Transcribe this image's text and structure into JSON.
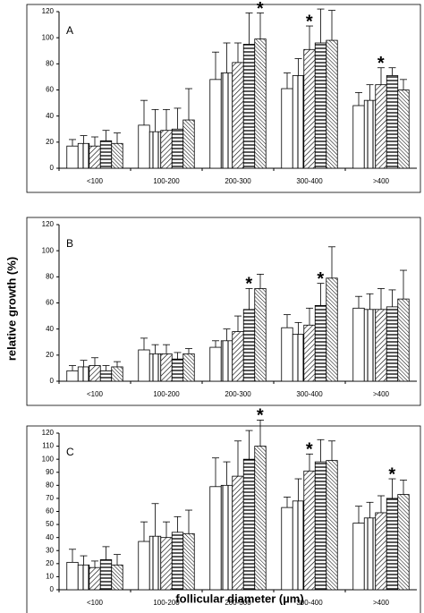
{
  "y_label": "relative growth (%)",
  "x_label": "follicular diameter (µm)",
  "chart_data": [
    {
      "type": "bar",
      "label": "A",
      "categories": [
        "<100",
        "100-200",
        "200-300",
        "300-400",
        ">400"
      ],
      "ylim": [
        0,
        120
      ],
      "yticks": [
        0,
        20,
        40,
        60,
        80,
        100,
        120
      ],
      "series": [
        {
          "pattern": "none",
          "color": "#000000",
          "values": [
            17,
            33,
            68,
            61,
            48
          ],
          "errors": [
            5,
            19,
            21,
            12,
            10
          ]
        },
        {
          "pattern": "vertical",
          "color": "#000000",
          "values": [
            19,
            28,
            73,
            71,
            52
          ],
          "errors": [
            6,
            17,
            23,
            13,
            12
          ]
        },
        {
          "pattern": "diagonal",
          "color": "#000000",
          "values": [
            17,
            29,
            81,
            91,
            64
          ],
          "errors": [
            7,
            16,
            15,
            18,
            13
          ]
        },
        {
          "pattern": "horizontal",
          "color": "#000000",
          "values": [
            21,
            30,
            95,
            96,
            71
          ],
          "errors": [
            8,
            16,
            24,
            26,
            6
          ]
        },
        {
          "pattern": "backdiagonal",
          "color": "#000000",
          "values": [
            19,
            37,
            99,
            98,
            60
          ],
          "errors": [
            8,
            24,
            20,
            23,
            8
          ]
        }
      ],
      "annotations": [
        {
          "text": "*",
          "category": 2,
          "series": 4
        },
        {
          "text": "*",
          "category": 3,
          "series": 2
        },
        {
          "text": "*",
          "category": 4,
          "series": 2
        }
      ]
    },
    {
      "type": "bar",
      "label": "B",
      "categories": [
        "<100",
        "100-200",
        "200-300",
        "300-400",
        ">400"
      ],
      "ylim": [
        0,
        120
      ],
      "yticks": [
        0,
        20,
        40,
        60,
        80,
        100,
        120
      ],
      "series": [
        {
          "pattern": "none",
          "color": "#000000",
          "values": [
            8,
            24,
            26,
            41,
            56
          ],
          "errors": [
            4,
            9,
            5,
            10,
            9
          ]
        },
        {
          "pattern": "vertical",
          "color": "#000000",
          "values": [
            11,
            21,
            31,
            36,
            55
          ],
          "errors": [
            5,
            7,
            9,
            9,
            12
          ]
        },
        {
          "pattern": "diagonal",
          "color": "#000000",
          "values": [
            12,
            21,
            38,
            43,
            55
          ],
          "errors": [
            6,
            7,
            12,
            13,
            16
          ]
        },
        {
          "pattern": "horizontal",
          "color": "#000000",
          "values": [
            8,
            17,
            55,
            58,
            57
          ],
          "errors": [
            4,
            5,
            16,
            17,
            13
          ]
        },
        {
          "pattern": "backdiagonal",
          "color": "#000000",
          "values": [
            11,
            21,
            71,
            79,
            63
          ],
          "errors": [
            4,
            4,
            11,
            24,
            22
          ]
        }
      ],
      "annotations": [
        {
          "text": "*",
          "category": 2,
          "series": 3
        },
        {
          "text": "*",
          "category": 3,
          "series": 3
        }
      ]
    },
    {
      "type": "bar",
      "label": "C",
      "categories": [
        "<100",
        "100-200",
        "200-300",
        "300-400",
        ">400"
      ],
      "ylim": [
        0,
        120
      ],
      "yticks": [
        0,
        10,
        20,
        30,
        40,
        50,
        60,
        70,
        80,
        90,
        100,
        110,
        120
      ],
      "series": [
        {
          "pattern": "none",
          "color": "#000000",
          "values": [
            21,
            37,
            79,
            63,
            51
          ],
          "errors": [
            10,
            15,
            22,
            8,
            13
          ]
        },
        {
          "pattern": "vertical",
          "color": "#000000",
          "values": [
            19,
            41,
            80,
            68,
            55
          ],
          "errors": [
            7,
            25,
            18,
            17,
            12
          ]
        },
        {
          "pattern": "diagonal",
          "color": "#000000",
          "values": [
            17,
            40,
            87,
            91,
            59
          ],
          "errors": [
            5,
            12,
            27,
            13,
            13
          ]
        },
        {
          "pattern": "horizontal",
          "color": "#000000",
          "values": [
            23,
            44,
            100,
            98,
            70
          ],
          "errors": [
            10,
            12,
            22,
            17,
            15
          ]
        },
        {
          "pattern": "backdiagonal",
          "color": "#000000",
          "values": [
            19,
            43,
            110,
            99,
            73
          ],
          "errors": [
            8,
            18,
            20,
            15,
            11
          ]
        }
      ],
      "annotations": [
        {
          "text": "*",
          "category": 2,
          "series": 4
        },
        {
          "text": "*",
          "category": 3,
          "series": 2
        },
        {
          "text": "*",
          "category": 4,
          "series": 3
        }
      ]
    }
  ]
}
